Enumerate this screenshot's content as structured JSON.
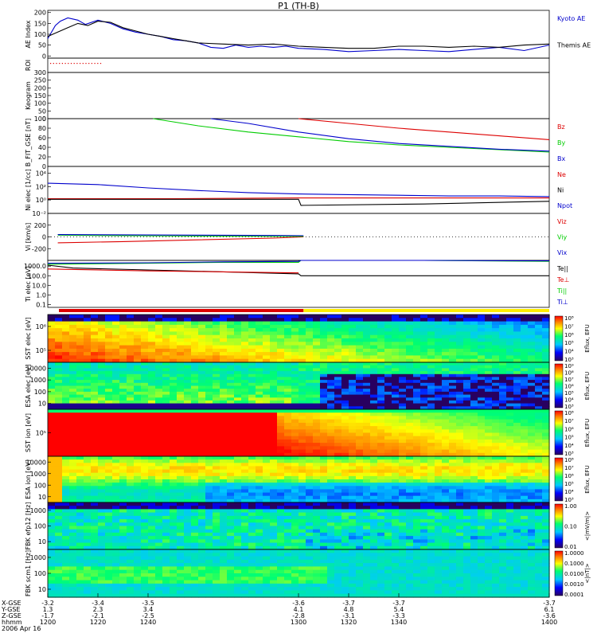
{
  "title": "P1 (TH-B)",
  "colors": {
    "blue": "#0000cc",
    "black": "#000000",
    "red": "#dd0000",
    "green": "#00cc00",
    "spectro_low": "#0000aa",
    "spectro_high": "#ff0000"
  },
  "chart_data": [
    {
      "id": "ae",
      "type": "line",
      "ylabel": "AE Index",
      "ylim": [
        -10,
        210
      ],
      "yticks": [
        "200",
        "150",
        "100",
        "50",
        "0"
      ],
      "yvals": [
        200,
        150,
        100,
        50,
        0
      ],
      "series": [
        {
          "name": "Kyoto AE",
          "color": "blue",
          "x": [
            1200,
            1203,
            1205,
            1208,
            1212,
            1215,
            1220,
            1225,
            1230,
            1235,
            1240,
            1245,
            1250,
            1255,
            1260,
            1265,
            1270,
            1275,
            1280,
            1285,
            1290,
            1295,
            1300,
            1310,
            1320,
            1330,
            1340,
            1350,
            1360,
            1370,
            1380,
            1390,
            1400
          ],
          "y": [
            80,
            140,
            160,
            175,
            165,
            145,
            165,
            150,
            125,
            110,
            100,
            90,
            75,
            70,
            60,
            40,
            35,
            50,
            40,
            45,
            40,
            45,
            35,
            30,
            20,
            25,
            30,
            25,
            20,
            30,
            40,
            25,
            50
          ]
        },
        {
          "name": "Themis AE",
          "color": "black",
          "x": [
            1200,
            1204,
            1208,
            1212,
            1216,
            1220,
            1225,
            1230,
            1235,
            1240,
            1245,
            1250,
            1255,
            1260,
            1270,
            1280,
            1290,
            1300,
            1310,
            1320,
            1330,
            1340,
            1350,
            1360,
            1370,
            1380,
            1390,
            1400
          ],
          "y": [
            90,
            110,
            130,
            150,
            140,
            160,
            155,
            130,
            115,
            100,
            90,
            80,
            70,
            60,
            55,
            50,
            55,
            45,
            40,
            35,
            35,
            45,
            45,
            40,
            45,
            40,
            50,
            55
          ]
        }
      ]
    },
    {
      "id": "roi",
      "type": "line",
      "ylabel": "ROI",
      "note_dots": [
        1200,
        1225
      ]
    },
    {
      "id": "keogram",
      "type": "heatmap",
      "ylabel": "Keogram",
      "ylim": [
        0,
        300
      ],
      "yticks": [
        "300",
        "250",
        "200",
        "150",
        "100",
        "50",
        "0"
      ],
      "yvals": [
        300,
        250,
        200,
        150,
        100,
        50,
        0
      ]
    },
    {
      "id": "bfield",
      "type": "line",
      "ylabel": "B_FIT_GSE [nT]",
      "ylim": [
        0,
        100
      ],
      "yticks": [
        "100",
        "80",
        "60",
        "40",
        "20",
        "0"
      ],
      "yvals": [
        100,
        80,
        60,
        40,
        20,
        0
      ],
      "series": [
        {
          "name": "Bz",
          "color": "red",
          "x": [
            1300,
            1320,
            1340,
            1360,
            1380,
            1400
          ],
          "y": [
            100,
            90,
            80,
            72,
            64,
            56
          ]
        },
        {
          "name": "By",
          "color": "green",
          "x": [
            1242,
            1260,
            1280,
            1300,
            1320,
            1340,
            1360,
            1380,
            1400
          ],
          "y": [
            100,
            85,
            72,
            62,
            52,
            45,
            40,
            35,
            30
          ]
        },
        {
          "name": "Bx",
          "color": "blue",
          "x": [
            1265,
            1280,
            1300,
            1320,
            1340,
            1360,
            1380,
            1400
          ],
          "y": [
            100,
            90,
            72,
            58,
            48,
            42,
            36,
            32
          ]
        }
      ]
    },
    {
      "id": "density",
      "type": "line",
      "ylabel": "Ni elec [1/cc]",
      "ylog": true,
      "ylim": [
        -2,
        5
      ],
      "yticks": [
        "10⁴",
        "10²",
        "10⁰",
        "10⁻²"
      ],
      "yvals": [
        4,
        2,
        0,
        -2
      ],
      "series": [
        {
          "name": "Ne",
          "color": "red",
          "x": [
            1200,
            1250,
            1300,
            1350,
            1400
          ],
          "y": [
            0.2,
            0.2,
            0.3,
            0.3,
            0.3
          ]
        },
        {
          "name": "Ni",
          "color": "black",
          "x": [
            1200,
            1230,
            1260,
            1300,
            1301,
            1350,
            1400
          ],
          "y": [
            0.1,
            0.1,
            0.1,
            0.1,
            -0.8,
            -0.6,
            -0.2
          ]
        },
        {
          "name": "Npot",
          "color": "blue",
          "x": [
            1200,
            1220,
            1240,
            1260,
            1280,
            1300,
            1320,
            1340,
            1360,
            1380,
            1400
          ],
          "y": [
            2.5,
            2.3,
            1.8,
            1.4,
            1.1,
            0.9,
            0.8,
            0.7,
            0.6,
            0.6,
            0.5
          ]
        }
      ]
    },
    {
      "id": "velocity",
      "type": "line",
      "ylabel": "Vi [km/s]",
      "ylim": [
        -400,
        400
      ],
      "yticks": [
        "200",
        "0",
        "-200"
      ],
      "yvals": [
        200,
        0,
        -200
      ],
      "series": [
        {
          "name": "Viz",
          "color": "red",
          "x": [
            1204,
            1230,
            1260,
            1290,
            1302
          ],
          "y": [
            -100,
            -80,
            -50,
            -20,
            0
          ]
        },
        {
          "name": "Viy",
          "color": "green",
          "x": [
            1204,
            1230,
            1260,
            1290,
            1302
          ],
          "y": [
            30,
            20,
            15,
            10,
            10
          ]
        },
        {
          "name": "Vix",
          "color": "blue",
          "x": [
            1204,
            1230,
            1260,
            1290,
            1302
          ],
          "y": [
            40,
            35,
            30,
            25,
            20
          ]
        }
      ]
    },
    {
      "id": "temp",
      "type": "line",
      "ylabel": "Ti elec [eV]",
      "ylog": true,
      "ylim": [
        -1.3,
        3.6
      ],
      "yticks": [
        "1000.0",
        "100.0",
        "10.0",
        "1.0",
        "0.1"
      ],
      "yvals": [
        3,
        2,
        1,
        0,
        -1
      ],
      "series": [
        {
          "name": "Te||",
          "color": "black",
          "x": [
            1200,
            1210,
            1240,
            1270,
            1300,
            1301,
            1350,
            1400
          ],
          "y": [
            3.1,
            2.8,
            2.6,
            2.4,
            2.2,
            2.0,
            2.0,
            2.0
          ]
        },
        {
          "name": "Te⊥",
          "color": "red",
          "x": [
            1200,
            1240,
            1270,
            1300
          ],
          "y": [
            2.7,
            2.5,
            2.4,
            2.3
          ]
        },
        {
          "name": "Ti||",
          "color": "green",
          "x": [
            1200,
            1240,
            1270,
            1300,
            1301,
            1350,
            1400
          ],
          "y": [
            3.2,
            3.3,
            3.4,
            3.4,
            3.6,
            3.6,
            3.5
          ]
        },
        {
          "name": "Ti⊥",
          "color": "blue",
          "x": [
            1200,
            1240,
            1270,
            1300,
            1301,
            1350,
            1400
          ],
          "y": [
            3.3,
            3.35,
            3.45,
            3.5,
            3.6,
            3.6,
            3.55
          ]
        }
      ]
    },
    {
      "id": "sst_e1",
      "type": "heatmap",
      "ylabel": "SST elec [eV]",
      "yticks": [
        "10⁶",
        "10⁵"
      ],
      "cbar_ticks": [
        "10⁸",
        "10⁷",
        "10⁶",
        "10⁵",
        "10⁴",
        "10³"
      ],
      "cbar_label": "Eflux, EFU"
    },
    {
      "id": "esa_e1",
      "type": "heatmap",
      "ylabel": "ESA elec [eV]",
      "yticks": [
        "10000",
        "1000",
        "100",
        "10"
      ],
      "cbar_ticks": [
        "10⁹",
        "10⁸",
        "10⁷",
        "10⁶",
        "10⁵",
        "10⁴",
        "10³"
      ],
      "cbar_label": "Eflux, EFU"
    },
    {
      "id": "sst_i",
      "type": "heatmap",
      "ylabel": "SST ion [eV]",
      "yticks": [
        "10⁵"
      ],
      "cbar_ticks": [
        "10⁸",
        "10⁷",
        "10⁶",
        "10⁵",
        "10⁴",
        "10³"
      ],
      "cbar_label": "Eflux, EFU"
    },
    {
      "id": "esa_i",
      "type": "heatmap",
      "ylabel": "ESA ion [eV]",
      "yticks": [
        "10000",
        "1000",
        "100",
        "10"
      ],
      "cbar_ticks": [
        "10⁸",
        "10⁷",
        "10⁶",
        "10⁵",
        "10⁴",
        "10³"
      ],
      "cbar_label": "Eflux, EFU"
    },
    {
      "id": "fbk_e",
      "type": "heatmap",
      "ylabel": "FBK efp12 [Hz]",
      "yticks": [
        "1000",
        "100",
        "10"
      ],
      "cbar_ticks": [
        "1.00",
        "0.10",
        "0.01"
      ],
      "cbar_label": "<|mV/m|>"
    },
    {
      "id": "fbk_b",
      "type": "heatmap",
      "ylabel": "FBK scm1 [Hz]",
      "yticks": [
        "1000",
        "100",
        "10"
      ],
      "cbar_ticks": [
        "1.0000",
        "0.1000",
        "0.0100",
        "0.0010",
        "0.0001"
      ],
      "cbar_label": "<|nT|>"
    }
  ],
  "legends": {
    "ae": [
      "Kyoto AE",
      "Themis AE"
    ],
    "bfield": [
      "Bz",
      "By",
      "Bx"
    ],
    "density": [
      "Ne",
      "Ni",
      "Npot"
    ],
    "velocity": [
      "Viz",
      "Viy",
      "Vix"
    ],
    "temp": [
      "Te||",
      "Te⊥",
      "Ti||",
      "Ti⊥"
    ]
  },
  "xaxis": {
    "row_labels": [
      "X-GSE",
      "Y-GSE",
      "Z-GSE",
      "hhmm",
      "2006 Apr 16"
    ],
    "ticks": [
      {
        "x": 1200,
        "vals": [
          "-3.2",
          "1.3",
          "-1.7",
          "1200"
        ]
      },
      {
        "x": 1220,
        "vals": [
          "-3.4",
          "2.3",
          "-2.1",
          "1220"
        ]
      },
      {
        "x": 1240,
        "vals": [
          "-3.5",
          "3.4",
          "-2.5",
          "1240"
        ]
      },
      {
        "x": 1300,
        "vals": [
          "-3.6",
          "4.1",
          "-2.8",
          "1300"
        ]
      },
      {
        "x": 1320,
        "vals": [
          "-3.7",
          "4.8",
          "-3.1",
          "1320"
        ]
      },
      {
        "x": 1340,
        "vals": [
          "-3.7",
          "5.4",
          "-3.3",
          "1340"
        ]
      },
      {
        "x": 1400,
        "vals": [
          "-3.7",
          "6.1",
          "-3.6",
          "1400"
        ]
      }
    ]
  }
}
